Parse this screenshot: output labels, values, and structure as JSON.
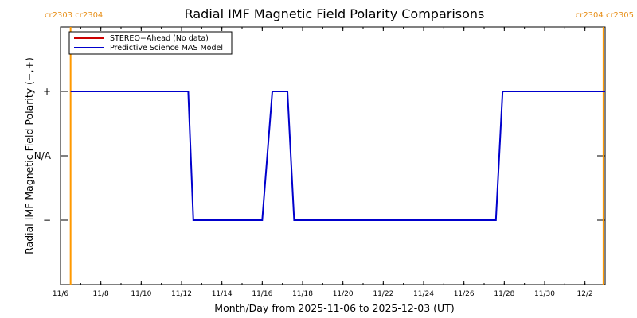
{
  "chart_data": {
    "type": "line",
    "title": "Radial IMF Magnetic Field Polarity Comparisons",
    "xlabel": "Month/Day from 2025-11-06 to 2025-12-03 (UT)",
    "ylabel": "Radial IMF Magnetic Field Polarity (−,+)",
    "x_range": [
      "2025-11-06",
      "2025-12-03"
    ],
    "y_ticks": [
      {
        "value": 1,
        "label": "+"
      },
      {
        "value": 0,
        "label": "N/A"
      },
      {
        "value": -1,
        "label": "−"
      }
    ],
    "ylim": [
      -2,
      2
    ],
    "x_ticks": [
      {
        "date": "2025-11-06",
        "label": "11/6"
      },
      {
        "date": "2025-11-08",
        "label": "11/8"
      },
      {
        "date": "2025-11-10",
        "label": "11/10"
      },
      {
        "date": "2025-11-12",
        "label": "11/12"
      },
      {
        "date": "2025-11-14",
        "label": "11/14"
      },
      {
        "date": "2025-11-16",
        "label": "11/16"
      },
      {
        "date": "2025-11-18",
        "label": "11/18"
      },
      {
        "date": "2025-11-20",
        "label": "11/20"
      },
      {
        "date": "2025-11-22",
        "label": "11/22"
      },
      {
        "date": "2025-11-24",
        "label": "11/24"
      },
      {
        "date": "2025-11-26",
        "label": "11/26"
      },
      {
        "date": "2025-11-28",
        "label": "11/28"
      },
      {
        "date": "2025-11-30",
        "label": "11/30"
      },
      {
        "date": "2025-12-02",
        "label": "12/2"
      }
    ],
    "carrington_markers": [
      {
        "date": "2025-11-06 12:00",
        "label": "cr2303 cr2304",
        "color": "#ff9900"
      },
      {
        "date": "2025-12-02 22:00",
        "label": "cr2304 cr2305",
        "color": "#ff9900"
      }
    ],
    "legend": {
      "position": "top-left",
      "items": [
        {
          "name": "STEREO−Ahead (No data)",
          "color": "#cc0000"
        },
        {
          "name": "Predictive Science MAS Model",
          "color": "#0000cc"
        }
      ]
    },
    "series": [
      {
        "name": "Predictive Science MAS Model",
        "color": "#0000cc",
        "points": [
          [
            "2025-11-06 12:00",
            1
          ],
          [
            "2025-11-12 08:00",
            1
          ],
          [
            "2025-11-12 14:00",
            -1
          ],
          [
            "2025-11-16 00:00",
            -1
          ],
          [
            "2025-11-16 12:00",
            1
          ],
          [
            "2025-11-17 06:00",
            1
          ],
          [
            "2025-11-17 14:00",
            -1
          ],
          [
            "2025-11-27 14:00",
            -1
          ],
          [
            "2025-11-27 22:00",
            1
          ],
          [
            "2025-12-03 00:00",
            1
          ]
        ]
      }
    ]
  }
}
